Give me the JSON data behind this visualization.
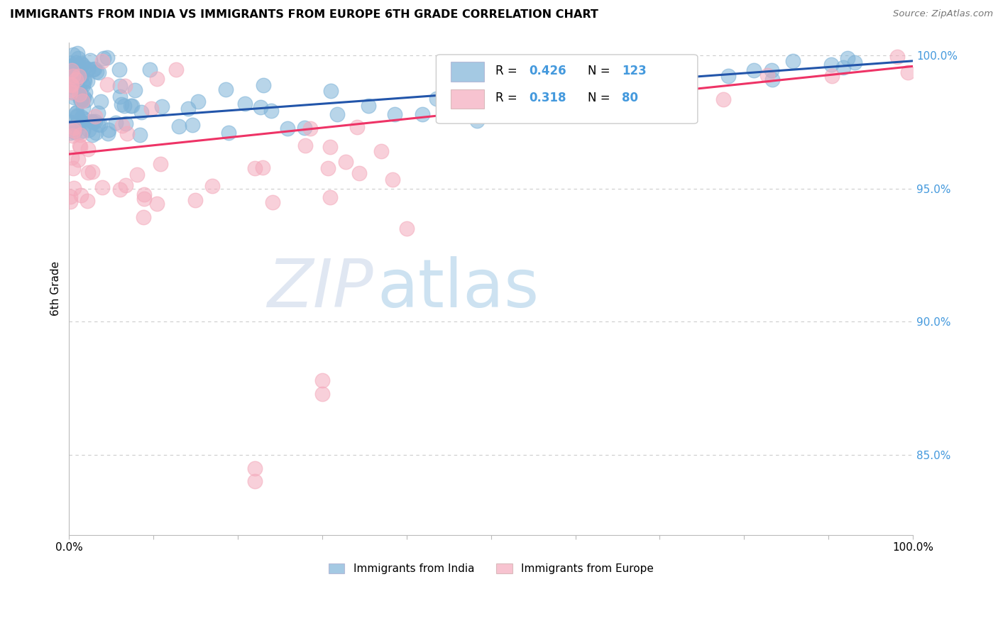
{
  "title": "IMMIGRANTS FROM INDIA VS IMMIGRANTS FROM EUROPE 6TH GRADE CORRELATION CHART",
  "source": "Source: ZipAtlas.com",
  "ylabel": "6th Grade",
  "xlim": [
    0.0,
    1.0
  ],
  "ylim": [
    0.82,
    1.005
  ],
  "yticks": [
    0.85,
    0.9,
    0.95,
    1.0
  ],
  "ytick_labels": [
    "85.0%",
    "90.0%",
    "95.0%",
    "100.0%"
  ],
  "xticks": [
    0.0,
    0.1,
    0.2,
    0.3,
    0.4,
    0.5,
    0.6,
    0.7,
    0.8,
    0.9,
    1.0
  ],
  "xtick_labels": [
    "0.0%",
    "",
    "",
    "",
    "",
    "",
    "",
    "",
    "",
    "",
    "100.0%"
  ],
  "india_R": 0.426,
  "india_N": 123,
  "europe_R": 0.318,
  "europe_N": 80,
  "india_color": "#7EB3D8",
  "europe_color": "#F4AABC",
  "india_line_color": "#2255AA",
  "europe_line_color": "#EE3366",
  "background_color": "#FFFFFF",
  "grid_color": "#CCCCCC",
  "watermark_zip_color": "#D0D8E8",
  "watermark_atlas_color": "#A0C8E8"
}
